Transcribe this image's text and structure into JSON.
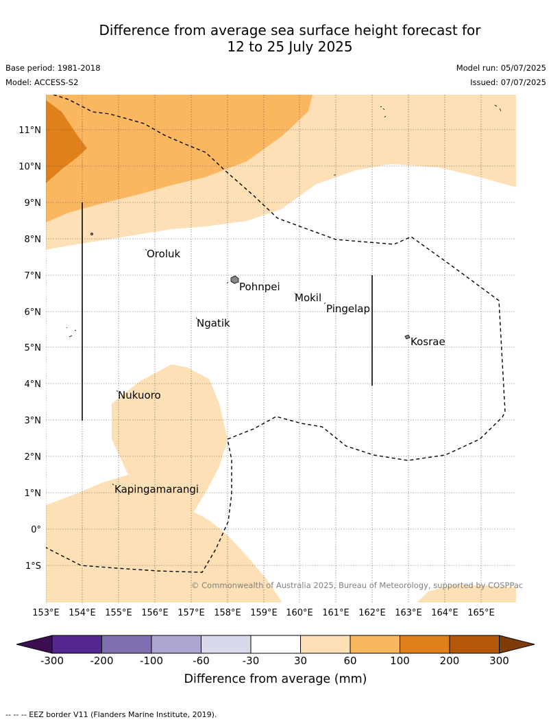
{
  "title_line1": "Difference from average sea surface height forecast for",
  "title_line2": "12 to 25 July 2025",
  "base_period": "Base period: 1981-2018",
  "model": "Model: ACCESS-S2",
  "model_run": "Model run: 05/07/2025",
  "issued": "Issued: 07/07/2025",
  "lat_labels": [
    "11°N",
    "10°N",
    "9°N",
    "8°N",
    "7°N",
    "6°N",
    "5°N",
    "4°N",
    "3°N",
    "2°N",
    "1°N",
    "0°",
    "1°S"
  ],
  "lon_labels": [
    "153°E",
    "154°E",
    "155°E",
    "156°E",
    "157°E",
    "158°E",
    "159°E",
    "160°E",
    "161°E",
    "162°E",
    "163°E",
    "164°E",
    "165°E"
  ],
  "places": [
    "Oroluk",
    "Pohnpei",
    "Mokil",
    "Pingelap",
    "Ngatik",
    "Kosrae",
    "Nukuoro",
    "Kapingamarangi"
  ],
  "copyright": "© Commonwealth of Australia 2025, Bureau of Meteorology, supported by COSPPac",
  "colorbar": {
    "ticks": [
      "-300",
      "-200",
      "-100",
      "-60",
      "-30",
      "30",
      "60",
      "100",
      "200",
      "300"
    ],
    "colors": [
      "#3b0f52",
      "#54278f",
      "#7f6fb0",
      "#aea6d1",
      "#d9d9ec",
      "#ffffff",
      "#fde0b5",
      "#fbb660",
      "#e0801a",
      "#b35806",
      "#7f3b08"
    ],
    "label": "Difference from average (mm)"
  },
  "footer": "-- -- -- EEZ border V11 (Flanders Marine Institute, 2019)."
}
